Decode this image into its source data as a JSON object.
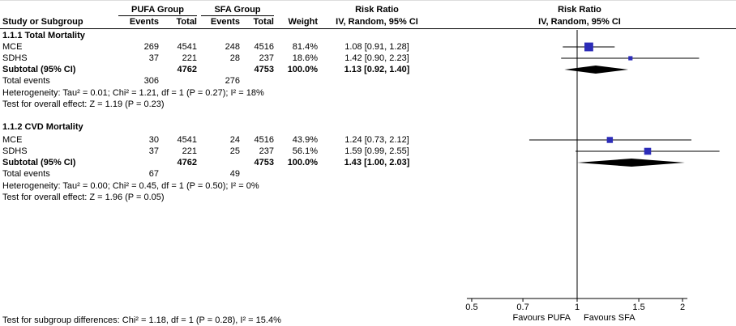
{
  "chart_data": {
    "type": "forest",
    "effect_measure": "Risk Ratio",
    "method_label": "IV, Random, 95% CI",
    "group1_label": "PUFA Group",
    "group2_label": "SFA Group",
    "columns": {
      "study": "Study or Subgroup",
      "events": "Events",
      "total": "Total",
      "weight": "Weight",
      "ci": "IV, Random, 95% CI"
    },
    "sections": [
      {
        "title": "1.1.1 Total Mortality",
        "rows": [
          {
            "study": "MCE",
            "events1": "269",
            "total1": "4541",
            "events2": "248",
            "total2": "4516",
            "weight": "81.4%",
            "ci_text": "1.08 [0.91, 1.28]",
            "rr": 1.08,
            "lo": 0.91,
            "hi": 1.28,
            "weight_pct": 81.4
          },
          {
            "study": "SDHS",
            "events1": "37",
            "total1": "221",
            "events2": "28",
            "total2": "237",
            "weight": "18.6%",
            "ci_text": "1.42 [0.90, 2.23]",
            "rr": 1.42,
            "lo": 0.9,
            "hi": 2.23,
            "weight_pct": 18.6
          }
        ],
        "subtotal": {
          "label": "Subtotal (95% CI)",
          "total1": "4762",
          "total2": "4753",
          "weight": "100.0%",
          "ci_text": "1.13 [0.92, 1.40]",
          "rr": 1.13,
          "lo": 0.92,
          "hi": 1.4
        },
        "total_events": {
          "label": "Total events",
          "events1": "306",
          "events2": "276"
        },
        "heterogeneity": "Heterogeneity: Tau² = 0.01; Chi² = 1.21, df = 1 (P = 0.27); I² = 18%",
        "overall_effect": "Test for overall effect: Z = 1.19 (P = 0.23)"
      },
      {
        "title": "1.1.2 CVD Mortality",
        "rows": [
          {
            "study": "MCE",
            "events1": "30",
            "total1": "4541",
            "events2": "24",
            "total2": "4516",
            "weight": "43.9%",
            "ci_text": "1.24 [0.73, 2.12]",
            "rr": 1.24,
            "lo": 0.73,
            "hi": 2.12,
            "weight_pct": 43.9
          },
          {
            "study": "SDHS",
            "events1": "37",
            "total1": "221",
            "events2": "25",
            "total2": "237",
            "weight": "56.1%",
            "ci_text": "1.59 [0.99, 2.55]",
            "rr": 1.59,
            "lo": 0.99,
            "hi": 2.55,
            "weight_pct": 56.1
          }
        ],
        "subtotal": {
          "label": "Subtotal (95% CI)",
          "total1": "4762",
          "total2": "4753",
          "weight": "100.0%",
          "ci_text": "1.43 [1.00, 2.03]",
          "rr": 1.43,
          "lo": 1.0,
          "hi": 2.03
        },
        "total_events": {
          "label": "Total events",
          "events1": "67",
          "events2": "49"
        },
        "heterogeneity": "Heterogeneity: Tau² = 0.00; Chi² = 0.45, df = 1 (P = 0.50); I² = 0%",
        "overall_effect": "Test for overall effect: Z = 1.96 (P = 0.05)"
      }
    ],
    "footer": {
      "subgroup_test": "Test for subgroup differences: Chi² = 1.18, df = 1 (P = 0.28), I² = 15.4%"
    },
    "axis": {
      "scale": "log",
      "ticks": [
        0.5,
        0.7,
        1,
        1.5,
        2
      ],
      "tick_labels": [
        "0.5",
        "0.7",
        "1",
        "1.5",
        "2"
      ],
      "favours_left": "Favours PUFA",
      "favours_right": "Favours SFA"
    },
    "style": {
      "square_color": "#2c2cb8",
      "diamond_color": "#000000",
      "line_color": "#000000"
    }
  }
}
